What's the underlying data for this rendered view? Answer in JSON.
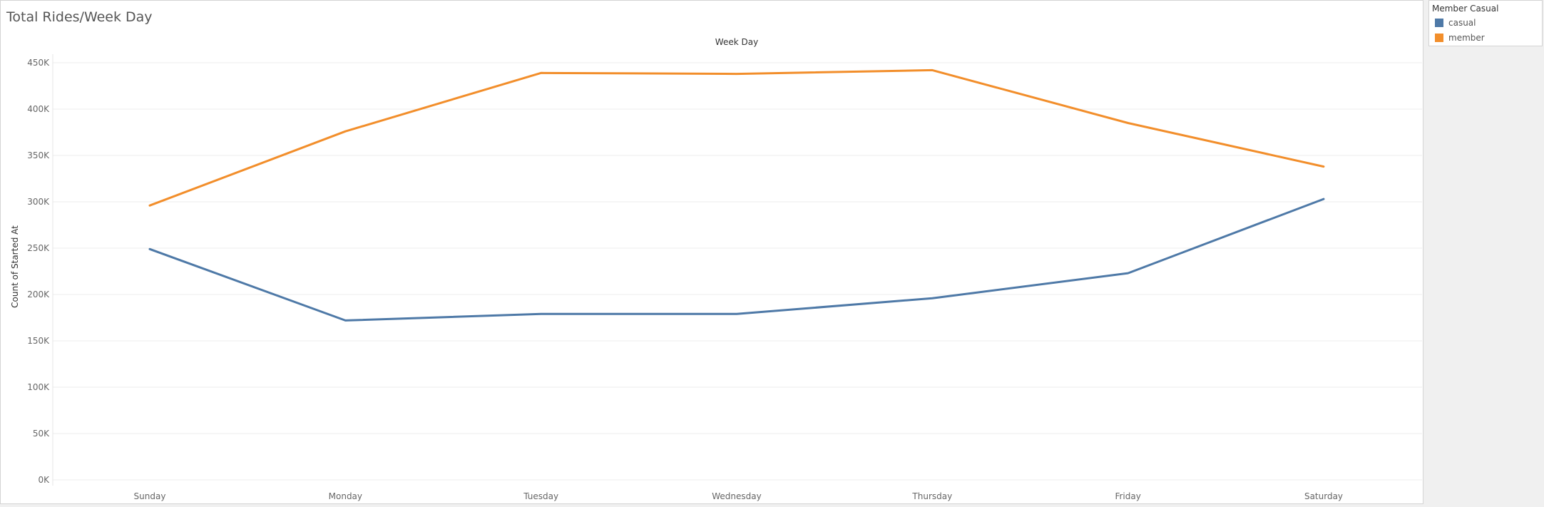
{
  "chart_data": {
    "type": "line",
    "title": "Total Rides/Week Day",
    "xlabel": "Week Day",
    "ylabel": "Count of Started At",
    "categories": [
      "Sunday",
      "Monday",
      "Tuesday",
      "Wednesday",
      "Thursday",
      "Friday",
      "Saturday"
    ],
    "yticks": [
      "0K",
      "50K",
      "100K",
      "150K",
      "200K",
      "250K",
      "300K",
      "350K",
      "400K",
      "450K"
    ],
    "ylim": [
      0,
      470000
    ],
    "grid": true,
    "legend_title": "Member Casual",
    "legend_position": "top-right",
    "series": [
      {
        "name": "casual",
        "color": "#4e79a7",
        "values": [
          249000,
          172000,
          179000,
          179000,
          196000,
          223000,
          303000
        ]
      },
      {
        "name": "member",
        "color": "#f28e2b",
        "values": [
          296000,
          376000,
          439000,
          438000,
          442000,
          385000,
          338000
        ]
      }
    ]
  }
}
